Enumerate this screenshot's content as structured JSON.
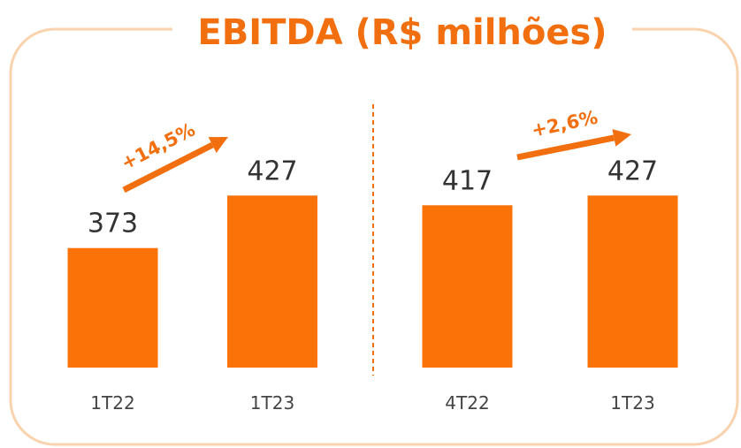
{
  "title": "EBITDA (R$ milhões)",
  "chart_data": [
    {
      "type": "bar",
      "categories": [
        "1T22",
        "1T23"
      ],
      "values": [
        373,
        427
      ],
      "color": "#fb7307",
      "ylim": [
        250,
        430
      ],
      "annotation": "+14,5%"
    },
    {
      "type": "bar",
      "categories": [
        "4T22",
        "1T23"
      ],
      "values": [
        417,
        427
      ],
      "color": "#fb7307",
      "ylim": [
        250,
        430
      ],
      "annotation": "+2,6%"
    }
  ]
}
